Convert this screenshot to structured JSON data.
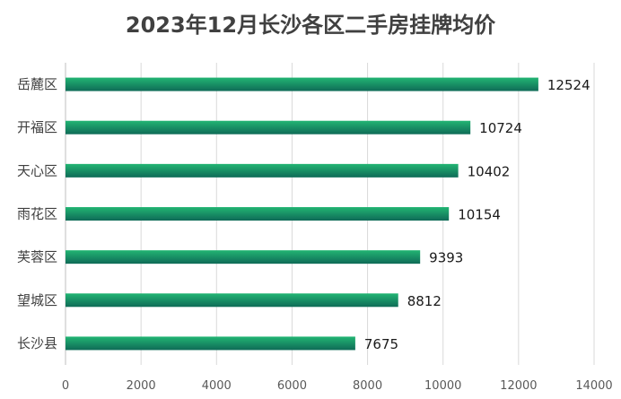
{
  "chart_data": {
    "type": "bar",
    "orientation": "horizontal",
    "title": "2023年12月长沙各区二手房挂牌均价",
    "categories": [
      "岳麓区",
      "开福区",
      "天心区",
      "雨花区",
      "芙蓉区",
      "望城区",
      "长沙县"
    ],
    "values": [
      12524,
      10724,
      10402,
      10154,
      9393,
      8812,
      7675
    ],
    "xlim": [
      0,
      14000
    ],
    "x_ticks": [
      0,
      2000,
      4000,
      6000,
      8000,
      10000,
      12000,
      14000
    ],
    "grid": true,
    "legend": "none",
    "bar_color_top": "#22b573",
    "bar_color_bottom": "#0f6b57"
  }
}
